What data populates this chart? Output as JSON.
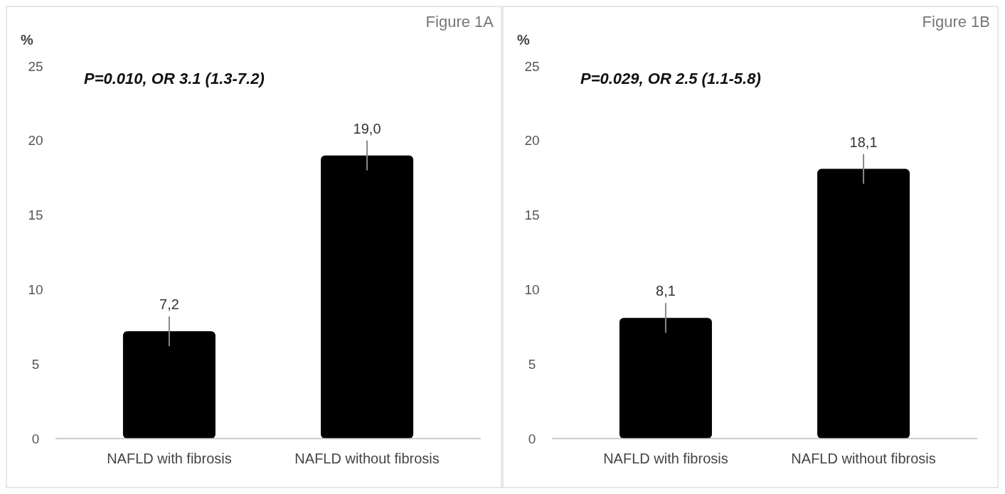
{
  "chart_data": [
    {
      "type": "bar",
      "title": "Figure 1A",
      "ylabel": "%",
      "annotations": [
        "P=0.010, OR 3.1 (1.3-7.2)"
      ],
      "categories": [
        "NAFLD with fibrosis",
        "NAFLD without fibrosis"
      ],
      "values": [
        7.2,
        19.0
      ],
      "value_labels": [
        "7,2",
        "19,0"
      ],
      "errors": [
        1,
        1
      ],
      "color": "#000000",
      "ylim": [
        0,
        25
      ],
      "yticks": [
        0,
        5,
        10,
        15,
        20,
        25
      ],
      "grid": false
    },
    {
      "type": "bar",
      "title": "Figure 1B",
      "ylabel": "%",
      "annotations": [
        "P=0.029, OR 2.5 (1.1-5.8)"
      ],
      "categories": [
        "NAFLD with fibrosis",
        "NAFLD without fibrosis"
      ],
      "values": [
        8.1,
        18.1
      ],
      "value_labels": [
        "8,1",
        "18,1"
      ],
      "errors": [
        1,
        1
      ],
      "color": "#000000",
      "ylim": [
        0,
        25
      ],
      "yticks": [
        0,
        5,
        10,
        15,
        20,
        25
      ],
      "grid": false
    }
  ]
}
